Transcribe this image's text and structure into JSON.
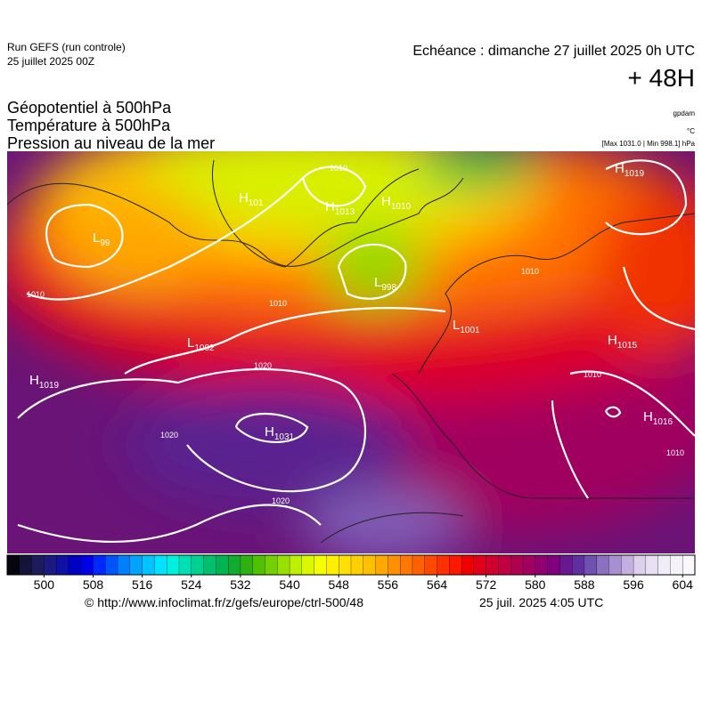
{
  "header": {
    "run": "Run GEFS (run controle)",
    "run_date": "25 juillet 2025 00Z",
    "echeance": "Echéance : dimanche 27 juillet 2025 0h UTC",
    "lead": "+ 48H"
  },
  "fields": [
    "Géopotentiel à 500hPa",
    "Température à 500hPa",
    "Pression au niveau de la mer"
  ],
  "units": [
    "gpdam",
    "°C",
    "[Max 1031.0 | Min 998.1] hPa"
  ],
  "centers": [
    {
      "letter": "H",
      "value": "1019"
    },
    {
      "letter": "H",
      "value": "101"
    },
    {
      "letter": "H",
      "value": "1013"
    },
    {
      "letter": "H",
      "value": "1010"
    },
    {
      "letter": "L",
      "value": "998"
    },
    {
      "letter": "L",
      "value": "1002"
    },
    {
      "letter": "H",
      "value": "1015"
    },
    {
      "letter": "H",
      "value": "1019"
    },
    {
      "letter": "H",
      "value": "1031"
    },
    {
      "letter": "H",
      "value": "1016"
    },
    {
      "letter": "L",
      "value": "99"
    },
    {
      "letter": "L",
      "value": "1001"
    }
  ],
  "isobar_labels": [
    "1010",
    "1020",
    "1020",
    "1020",
    "1010",
    "1010",
    "1010",
    "1010",
    "1010"
  ],
  "colorbar": {
    "range": [
      494,
      606
    ],
    "ticks": [
      500,
      508,
      516,
      524,
      532,
      540,
      548,
      556,
      564,
      572,
      580,
      588,
      596,
      604
    ],
    "colors": [
      "#06060e",
      "#14143a",
      "#1c1c5c",
      "#1a1a80",
      "#1010a4",
      "#0000c4",
      "#0000e6",
      "#0028ff",
      "#0054ff",
      "#0080ff",
      "#00a4ff",
      "#00c4ff",
      "#00e2ff",
      "#00f0e0",
      "#00e0b4",
      "#00d090",
      "#00c070",
      "#00b454",
      "#10ac30",
      "#30b010",
      "#50c000",
      "#74d000",
      "#98e000",
      "#bcf000",
      "#dcf800",
      "#f6ff00",
      "#fff000",
      "#ffe000",
      "#ffd000",
      "#ffc000",
      "#ffa800",
      "#ff9000",
      "#ff7800",
      "#ff6000",
      "#ff4800",
      "#ff3000",
      "#ff1800",
      "#f00000",
      "#e0001c",
      "#d00030",
      "#c00040",
      "#b00050",
      "#a00060",
      "#900070",
      "#80007e",
      "#6a1890",
      "#6030a0",
      "#7050b0",
      "#8c70c0",
      "#a890d0",
      "#c4b0e0",
      "#dcd0ec",
      "#e8e0f2",
      "#f0ecf8",
      "#f6f2fa",
      "#faf8fc"
    ]
  },
  "footer": {
    "url": "© http://www.infoclimat.fr/z/gefs/europe/ctrl-500/48",
    "time": "25 juil. 2025  4:05 UTC"
  }
}
